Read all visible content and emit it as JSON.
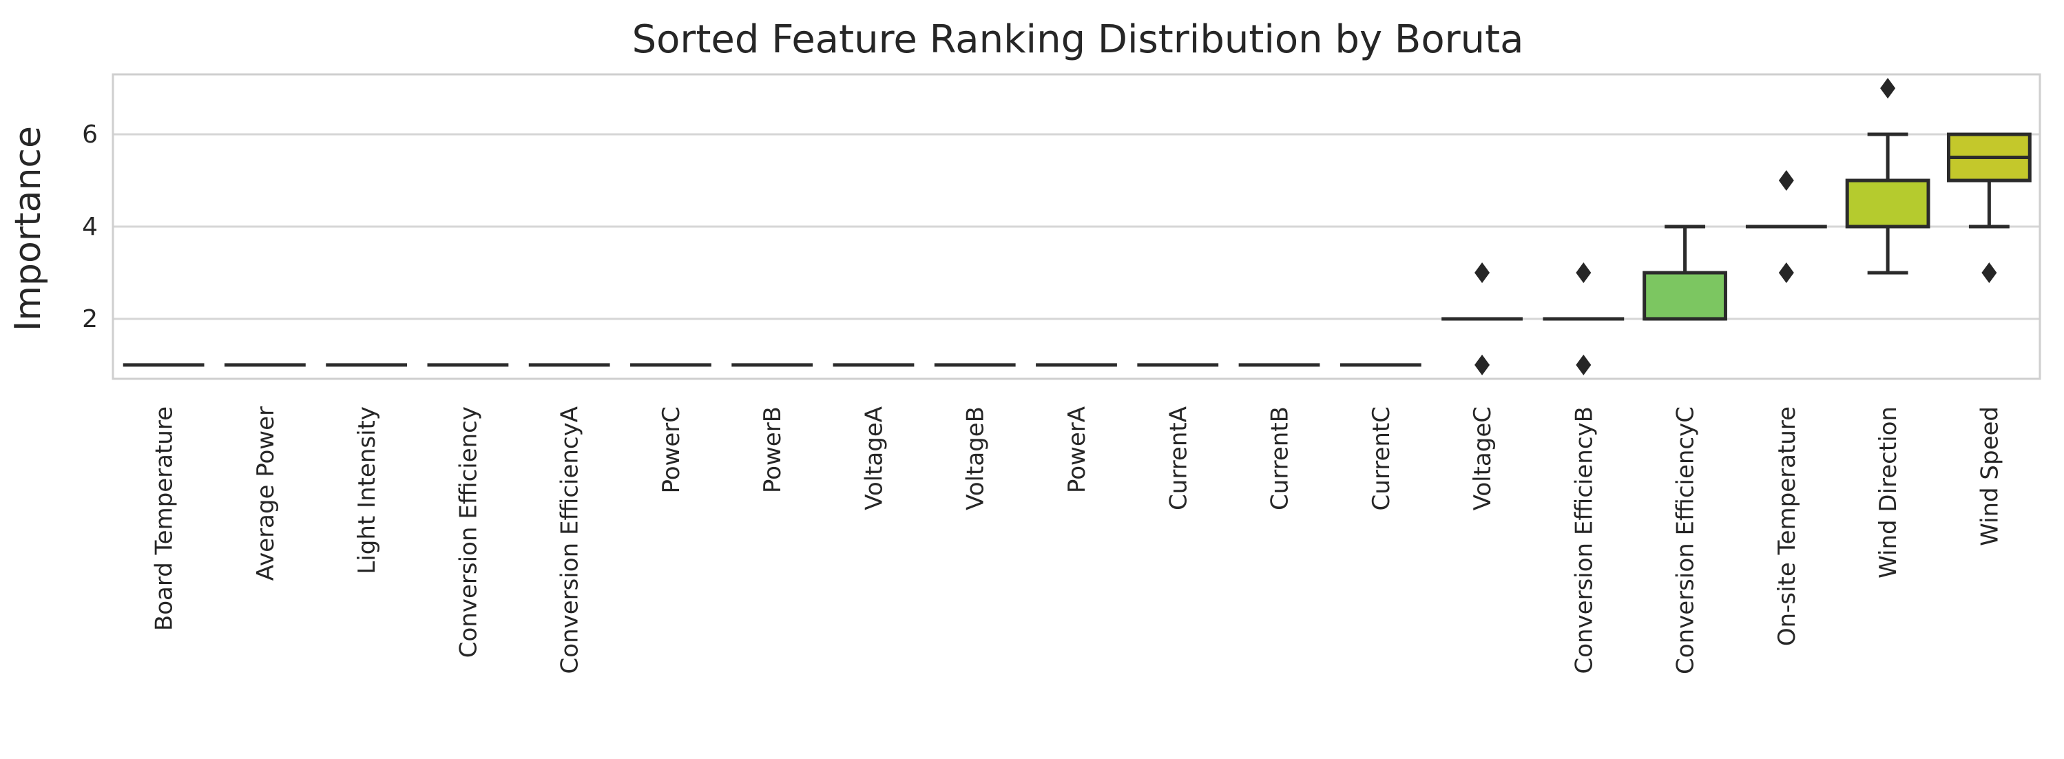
{
  "chart_data": {
    "type": "box",
    "title": "Sorted Feature Ranking Distribution by Boruta",
    "xlabel": "",
    "ylabel": "Importance",
    "ylim": [
      0.7,
      7.3
    ],
    "yticks": [
      2,
      4,
      6
    ],
    "grid": true,
    "categories": [
      "Board Temperature",
      "Average Power",
      "Light Intensity",
      "Conversion Efficiency",
      "Conversion EfficiencyA",
      "PowerC",
      "PowerB",
      "VoltageA",
      "VoltageB",
      "PowerA",
      "CurrentA",
      "CurrentB",
      "CurrentC",
      "VoltageC",
      "Conversion EfficiencyB",
      "Conversion EfficiencyC",
      "On-site Temperature",
      "Wind Direction",
      "Wind Speed"
    ],
    "boxes": [
      {
        "q1": 1,
        "median": 1,
        "q3": 1,
        "whisker_low": 1,
        "whisker_high": 1,
        "outliers": [],
        "color": "#5b3a8f"
      },
      {
        "q1": 1,
        "median": 1,
        "q3": 1,
        "whisker_low": 1,
        "whisker_high": 1,
        "outliers": [],
        "color": "#5b3a8f"
      },
      {
        "q1": 1,
        "median": 1,
        "q3": 1,
        "whisker_low": 1,
        "whisker_high": 1,
        "outliers": [],
        "color": "#5b3a8f"
      },
      {
        "q1": 1,
        "median": 1,
        "q3": 1,
        "whisker_low": 1,
        "whisker_high": 1,
        "outliers": [],
        "color": "#5b3a8f"
      },
      {
        "q1": 1,
        "median": 1,
        "q3": 1,
        "whisker_low": 1,
        "whisker_high": 1,
        "outliers": [],
        "color": "#5b3a8f"
      },
      {
        "q1": 1,
        "median": 1,
        "q3": 1,
        "whisker_low": 1,
        "whisker_high": 1,
        "outliers": [],
        "color": "#5b3a8f"
      },
      {
        "q1": 1,
        "median": 1,
        "q3": 1,
        "whisker_low": 1,
        "whisker_high": 1,
        "outliers": [],
        "color": "#5b3a8f"
      },
      {
        "q1": 1,
        "median": 1,
        "q3": 1,
        "whisker_low": 1,
        "whisker_high": 1,
        "outliers": [],
        "color": "#5b3a8f"
      },
      {
        "q1": 1,
        "median": 1,
        "q3": 1,
        "whisker_low": 1,
        "whisker_high": 1,
        "outliers": [],
        "color": "#5b3a8f"
      },
      {
        "q1": 1,
        "median": 1,
        "q3": 1,
        "whisker_low": 1,
        "whisker_high": 1,
        "outliers": [],
        "color": "#5b3a8f"
      },
      {
        "q1": 1,
        "median": 1,
        "q3": 1,
        "whisker_low": 1,
        "whisker_high": 1,
        "outliers": [],
        "color": "#5b3a8f"
      },
      {
        "q1": 1,
        "median": 1,
        "q3": 1,
        "whisker_low": 1,
        "whisker_high": 1,
        "outliers": [],
        "color": "#5b3a8f"
      },
      {
        "q1": 1,
        "median": 1,
        "q3": 1,
        "whisker_low": 1,
        "whisker_high": 1,
        "outliers": [],
        "color": "#5b3a8f"
      },
      {
        "q1": 2,
        "median": 2,
        "q3": 2,
        "whisker_low": 2,
        "whisker_high": 2,
        "outliers": [
          1,
          3
        ],
        "color": "#2e8f7a"
      },
      {
        "q1": 2,
        "median": 2,
        "q3": 2,
        "whisker_low": 2,
        "whisker_high": 2,
        "outliers": [
          1,
          3
        ],
        "color": "#3aa27a"
      },
      {
        "q1": 2,
        "median": 2,
        "q3": 3,
        "whisker_low": 2,
        "whisker_high": 4,
        "outliers": [],
        "color": "#7cc661"
      },
      {
        "q1": 4,
        "median": 4,
        "q3": 4,
        "whisker_low": 4,
        "whisker_high": 4,
        "outliers": [
          3,
          5
        ],
        "color": "#a3cf3d"
      },
      {
        "q1": 4,
        "median": 4,
        "q3": 5,
        "whisker_low": 3,
        "whisker_high": 6,
        "outliers": [
          7
        ],
        "color": "#b5cb2e"
      },
      {
        "q1": 5,
        "median": 5.5,
        "q3": 6,
        "whisker_low": 4,
        "whisker_high": 6,
        "outliers": [
          3
        ],
        "color": "#c4c82b"
      }
    ]
  }
}
